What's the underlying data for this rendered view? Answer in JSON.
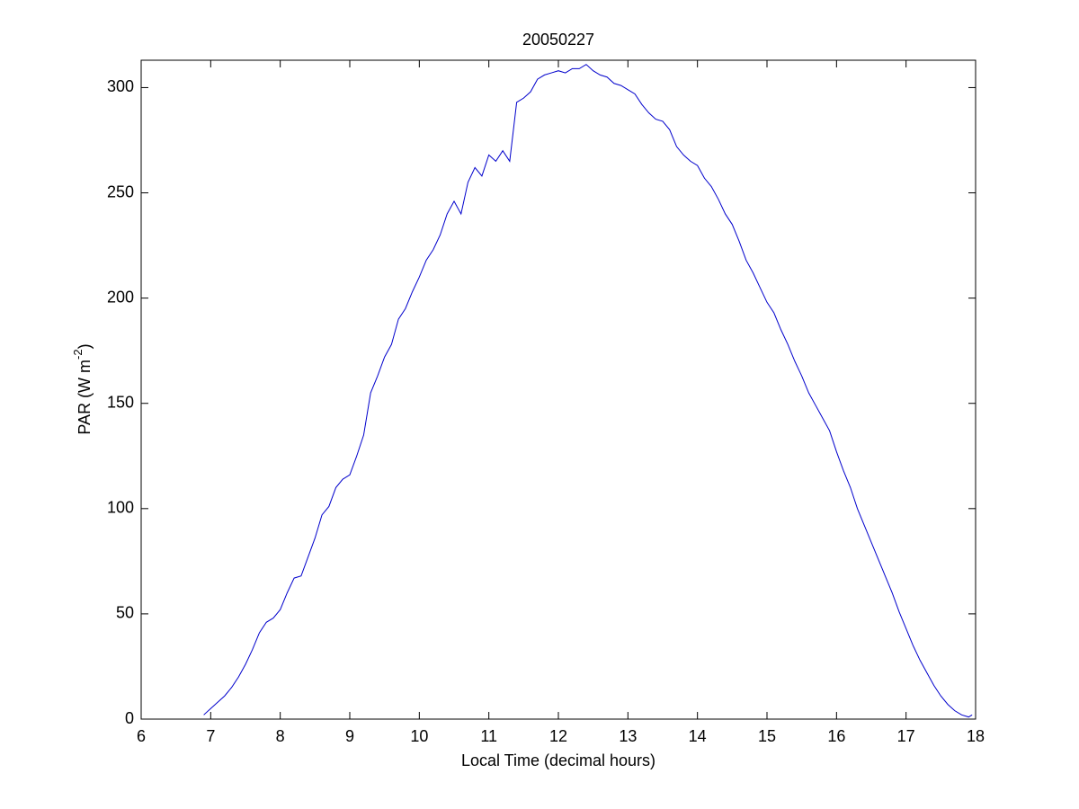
{
  "chart_data": {
    "type": "line",
    "title": "20050227",
    "xlabel": "Local Time (decimal hours)",
    "ylabel_parts": [
      "PAR (W m",
      "-2",
      ")"
    ],
    "xlim": [
      6,
      18
    ],
    "ylim": [
      0,
      313
    ],
    "xticks": [
      6,
      7,
      8,
      9,
      10,
      11,
      12,
      13,
      14,
      15,
      16,
      17,
      18
    ],
    "yticks": [
      0,
      50,
      100,
      150,
      200,
      250,
      300
    ],
    "grid": false,
    "x": [
      6.9,
      7.0,
      7.1,
      7.2,
      7.3,
      7.4,
      7.5,
      7.6,
      7.7,
      7.8,
      7.9,
      8.0,
      8.1,
      8.2,
      8.3,
      8.4,
      8.5,
      8.6,
      8.7,
      8.8,
      8.9,
      9.0,
      9.1,
      9.2,
      9.3,
      9.4,
      9.5,
      9.6,
      9.7,
      9.8,
      9.9,
      10.0,
      10.1,
      10.2,
      10.3,
      10.4,
      10.5,
      10.6,
      10.7,
      10.8,
      10.9,
      11.0,
      11.1,
      11.2,
      11.3,
      11.4,
      11.5,
      11.6,
      11.7,
      11.8,
      11.9,
      12.0,
      12.1,
      12.2,
      12.3,
      12.4,
      12.5,
      12.6,
      12.7,
      12.8,
      12.9,
      13.0,
      13.1,
      13.2,
      13.3,
      13.4,
      13.5,
      13.6,
      13.7,
      13.8,
      13.9,
      14.0,
      14.1,
      14.2,
      14.3,
      14.4,
      14.5,
      14.6,
      14.7,
      14.8,
      14.9,
      15.0,
      15.1,
      15.2,
      15.3,
      15.4,
      15.5,
      15.6,
      15.7,
      15.8,
      15.9,
      16.0,
      16.1,
      16.2,
      16.3,
      16.4,
      16.5,
      16.6,
      16.7,
      16.8,
      16.9,
      17.0,
      17.1,
      17.2,
      17.3,
      17.4,
      17.5,
      17.6,
      17.7,
      17.8,
      17.9,
      17.95
    ],
    "series": [
      {
        "name": "PAR",
        "color": "#0000cc",
        "values": [
          2,
          5,
          8,
          11,
          15,
          20,
          26,
          33,
          41,
          46,
          48,
          52,
          60,
          67,
          68,
          77,
          86,
          97,
          101,
          110,
          114,
          116,
          125,
          135,
          155,
          163,
          172,
          178,
          190,
          195,
          203,
          210,
          218,
          223,
          230,
          240,
          246,
          240,
          255,
          262,
          258,
          268,
          265,
          270,
          265,
          293,
          295,
          298,
          304,
          306,
          307,
          308,
          307,
          309,
          309,
          311,
          308,
          306,
          305,
          302,
          301,
          299,
          297,
          292,
          288,
          285,
          284,
          280,
          272,
          268,
          265,
          263,
          257,
          253,
          247,
          240,
          235,
          227,
          218,
          212,
          205,
          198,
          193,
          185,
          178,
          170,
          163,
          155,
          149,
          143,
          137,
          127,
          118,
          110,
          100,
          92,
          84,
          76,
          68,
          60,
          51,
          43,
          35,
          28,
          22,
          16,
          11,
          7,
          4,
          2,
          1,
          2
        ]
      }
    ]
  }
}
